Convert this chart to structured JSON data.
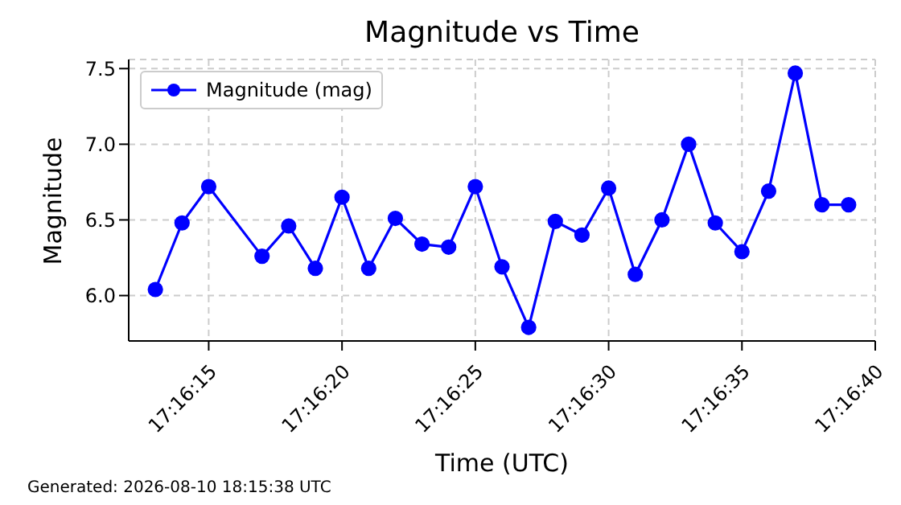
{
  "chart_data": {
    "type": "line",
    "title": "Magnitude vs Time",
    "xlabel": "Time (UTC)",
    "ylabel": "Magnitude",
    "annotations": [
      "Generated: 2026-08-10 18:15:38 UTC"
    ],
    "x": [
      "2026-08-10T17:16:13",
      "2026-08-10T17:16:14",
      "2026-08-10T17:16:15",
      "2026-08-10T17:16:17",
      "2026-08-10T17:16:18",
      "2026-08-10T17:16:19",
      "2026-08-10T17:16:20",
      "2026-08-10T17:16:21",
      "2026-08-10T17:16:22",
      "2026-08-10T17:16:23",
      "2026-08-10T17:16:24",
      "2026-08-10T17:16:25",
      "2026-08-10T17:16:26",
      "2026-08-10T17:16:27",
      "2026-08-10T17:16:28",
      "2026-08-10T17:16:29",
      "2026-08-10T17:16:30",
      "2026-08-10T17:16:31",
      "2026-08-10T17:16:32",
      "2026-08-10T17:16:33",
      "2026-08-10T17:16:34",
      "2026-08-10T17:16:35",
      "2026-08-10T17:16:36",
      "2026-08-10T17:16:37",
      "2026-08-10T17:16:38",
      "2026-08-10T17:16:39"
    ],
    "series": [
      {
        "name": "Magnitude (mag)",
        "color": "#0000ff",
        "values": [
          6.04,
          6.48,
          6.72,
          6.26,
          6.46,
          6.18,
          6.65,
          6.18,
          6.51,
          6.34,
          6.32,
          6.72,
          6.19,
          5.79,
          6.49,
          6.4,
          6.71,
          6.14,
          6.5,
          7.0,
          6.48,
          6.29,
          6.69,
          7.47,
          6.6,
          6.6
        ]
      }
    ],
    "xlim": [
      "2026-08-10T17:16:12",
      "2026-08-10T17:16:40"
    ],
    "xticks": [
      {
        "value": "2026-08-10T17:16:15",
        "label": "17:16:15"
      },
      {
        "value": "2026-08-10T17:16:20",
        "label": "17:16:20"
      },
      {
        "value": "2026-08-10T17:16:25",
        "label": "17:16:25"
      },
      {
        "value": "2026-08-10T17:16:30",
        "label": "17:16:30"
      },
      {
        "value": "2026-08-10T17:16:35",
        "label": "17:16:35"
      },
      {
        "value": "2026-08-10T17:16:40",
        "label": "17:16:40"
      }
    ],
    "ylim": [
      5.7,
      7.56
    ],
    "yticks": [
      {
        "value": 6,
        "label": "6.0"
      },
      {
        "value": 6.5,
        "label": "6.5"
      },
      {
        "value": 7,
        "label": "7.0"
      },
      {
        "value": 7.5,
        "label": "7.5"
      }
    ],
    "grid": true,
    "legend": "top left",
    "marker": "circle",
    "line_style": "solid"
  }
}
